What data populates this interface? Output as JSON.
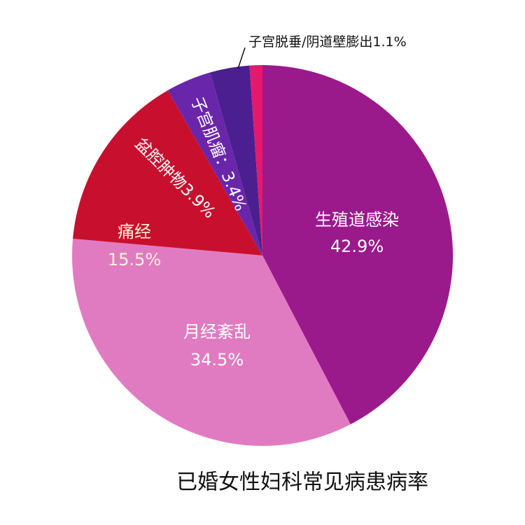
{
  "chart_data": {
    "type": "pie",
    "title": "已婚女性妇科常见病患病率",
    "categories": [
      "生殖道感染",
      "月经紊乱",
      "痛经",
      "盆腔肿物",
      "子宫肌瘤：",
      "子宫脱垂/阴道壁膨出"
    ],
    "values": [
      42.9,
      34.5,
      15.5,
      3.9,
      3.4,
      1.1
    ],
    "value_labels": [
      "42.9%",
      "34.5%",
      "15.5%",
      "3.9%",
      "3.4%",
      "1.1%"
    ],
    "colors": [
      "#9a1a8c",
      "#e07bc2",
      "#c8102e",
      "#6a26ab",
      "#4b1f8f",
      "#e6176f"
    ]
  }
}
